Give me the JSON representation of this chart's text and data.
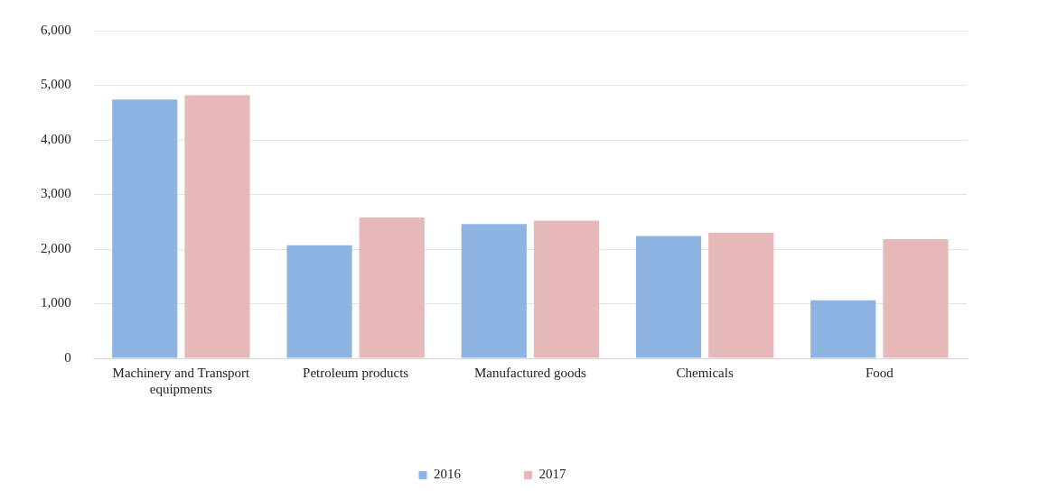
{
  "chart_data": {
    "type": "bar",
    "categories": [
      "Machinery and Transport equipments",
      "Petroleum products",
      "Manufactured goods",
      "Chemicals",
      "Food"
    ],
    "series": [
      {
        "name": "2016",
        "color": "#8eb4e3",
        "values": [
          4740,
          2070,
          2460,
          2240,
          1060
        ]
      },
      {
        "name": "2017",
        "color": "#e6b8b7",
        "values": [
          4820,
          2580,
          2520,
          2300,
          2180
        ]
      }
    ],
    "ylim": [
      0,
      6000
    ],
    "yticks": [
      {
        "value": 0,
        "label": "0"
      },
      {
        "value": 1000,
        "label": "1,000"
      },
      {
        "value": 2000,
        "label": "2,000"
      },
      {
        "value": 3000,
        "label": "3,000"
      },
      {
        "value": 4000,
        "label": "4,000"
      },
      {
        "value": 5000,
        "label": "5,000"
      },
      {
        "value": 6000,
        "label": "6,000"
      }
    ],
    "grid": "y",
    "legend": "bottom"
  }
}
